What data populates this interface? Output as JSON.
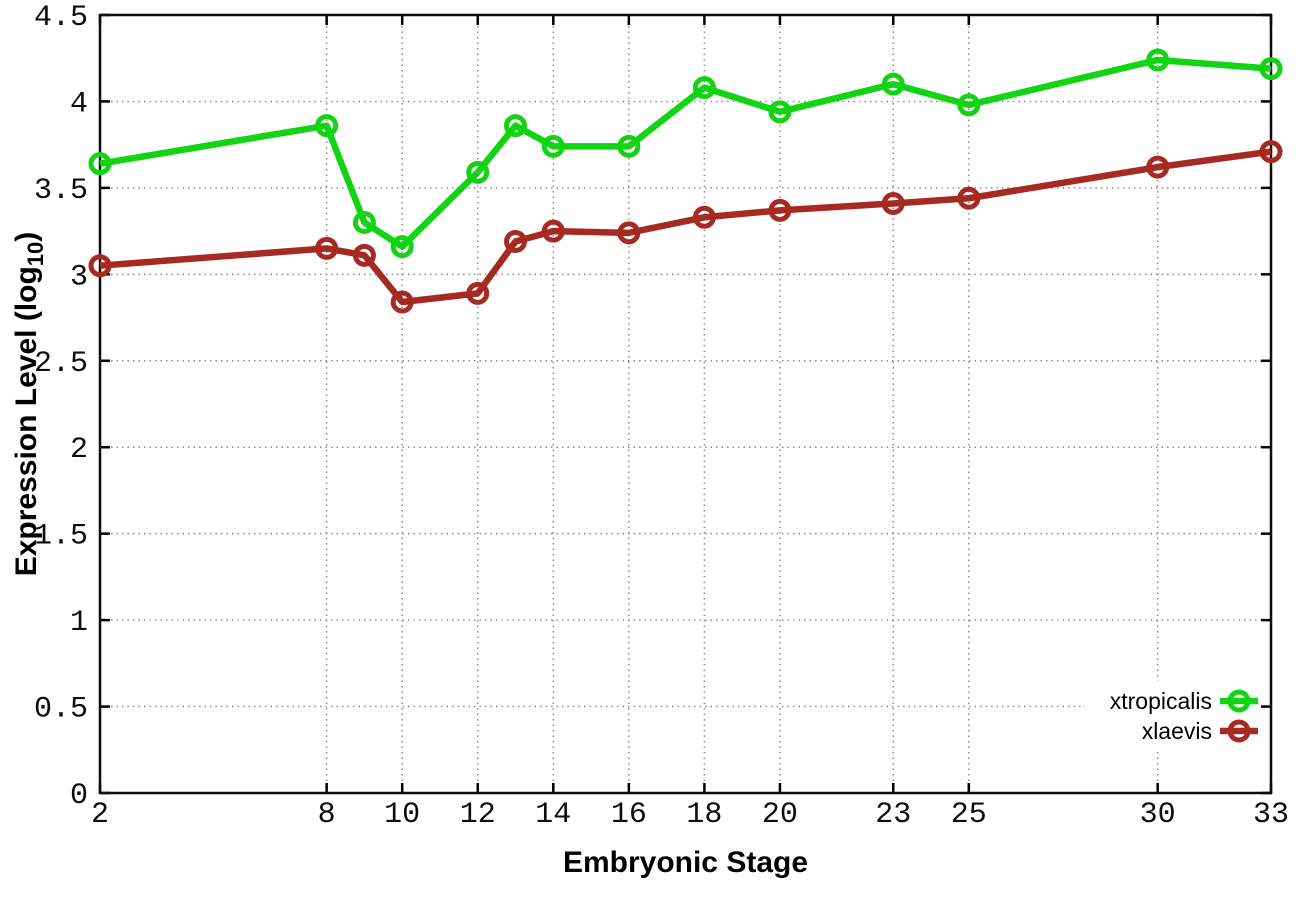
{
  "chart_data": {
    "type": "line",
    "title": "",
    "xlabel": "Embryonic Stage",
    "ylabel": "Expression Level (log10)",
    "ylabel_parts": {
      "prefix": "Expression Level (log",
      "sub": "10",
      "suffix": ")"
    },
    "xlim": [
      2,
      33
    ],
    "ylim": [
      0,
      4.5
    ],
    "grid": true,
    "legend_position": "inside-bottom-right",
    "x": [
      2,
      8,
      9,
      10,
      12,
      13,
      14,
      16,
      18,
      20,
      23,
      25,
      30,
      33
    ],
    "x_tick_values": [
      2,
      8,
      10,
      12,
      14,
      16,
      18,
      20,
      23,
      25,
      30,
      33
    ],
    "x_tick_labels": [
      "2",
      "8",
      "10",
      "12",
      "14",
      "16",
      "18",
      "20",
      "23",
      "25",
      "30",
      "33"
    ],
    "y_tick_values": [
      0,
      0.5,
      1,
      1.5,
      2,
      2.5,
      3,
      3.5,
      4,
      4.5
    ],
    "y_tick_labels": [
      "0",
      "0.5",
      "1",
      "1.5",
      "2",
      "2.5",
      "3",
      "3.5",
      "4",
      "4.5"
    ],
    "marker": "open-circle",
    "axis_color": "#0d0d0d",
    "grid_color": "#8f8f8f",
    "background": "#ffffff",
    "series": [
      {
        "name": "xtropicalis",
        "color": "#12d412",
        "values": [
          3.64,
          3.86,
          3.3,
          3.16,
          3.59,
          3.86,
          3.74,
          3.74,
          4.08,
          3.94,
          4.1,
          3.98,
          4.24,
          4.19
        ]
      },
      {
        "name": "xlaevis",
        "color": "#a62a22",
        "values": [
          3.05,
          3.15,
          3.11,
          2.84,
          2.89,
          3.19,
          3.25,
          3.24,
          3.33,
          3.37,
          3.41,
          3.44,
          3.62,
          3.71
        ]
      }
    ]
  }
}
